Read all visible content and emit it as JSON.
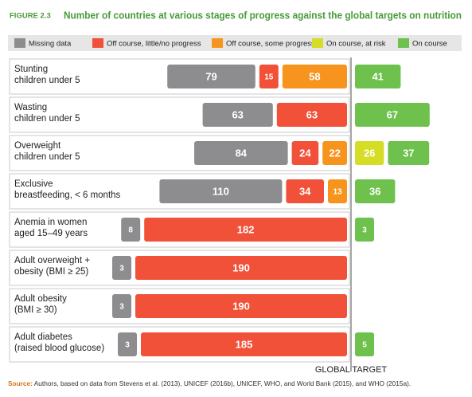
{
  "chart_data": {
    "type": "diverging-bar",
    "figure_label": "FIGURE 2.3",
    "title": "Number of countries at various stages of progress against the global targets on nutrition",
    "categories": [
      "Stunting\nchildren under 5",
      "Wasting\nchildren under 5",
      "Overweight\nchildren under 5",
      "Exclusive\nbreastfeeding, < 6 months",
      "Anemia in women\naged 15–49 years",
      "Adult overweight +\nobesity (BMI ≥ 25)",
      "Adult obesity\n(BMI ≥ 30)",
      "Adult diabetes\n(raised blood glucose)"
    ],
    "series": [
      {
        "name": "Missing data",
        "color": "#8d8d8f",
        "side": "left",
        "values": [
          79,
          63,
          84,
          110,
          8,
          3,
          3,
          3
        ]
      },
      {
        "name": "Off course, little/no progress",
        "color": "#f05138",
        "side": "left",
        "values": [
          15,
          63,
          24,
          34,
          182,
          190,
          190,
          185
        ]
      },
      {
        "name": "Off course, some progress",
        "color": "#f7941e",
        "side": "left",
        "values": [
          58,
          null,
          22,
          13,
          null,
          null,
          null,
          null
        ]
      },
      {
        "name": "On course, at risk",
        "color": "#d5dd26",
        "side": "right",
        "values": [
          null,
          null,
          26,
          null,
          null,
          null,
          null,
          null
        ]
      },
      {
        "name": "On course",
        "color": "#6dc14c",
        "side": "right",
        "values": [
          41,
          67,
          37,
          36,
          3,
          null,
          null,
          5
        ]
      }
    ],
    "target_label": "GLOBAL TARGET",
    "source_label": "Source:",
    "source_text": "Authors, based on data from Stevens et al. (2013), UNICEF (2016b), UNICEF, WHO, and World Bank (2015), and WHO (2015a)."
  }
}
